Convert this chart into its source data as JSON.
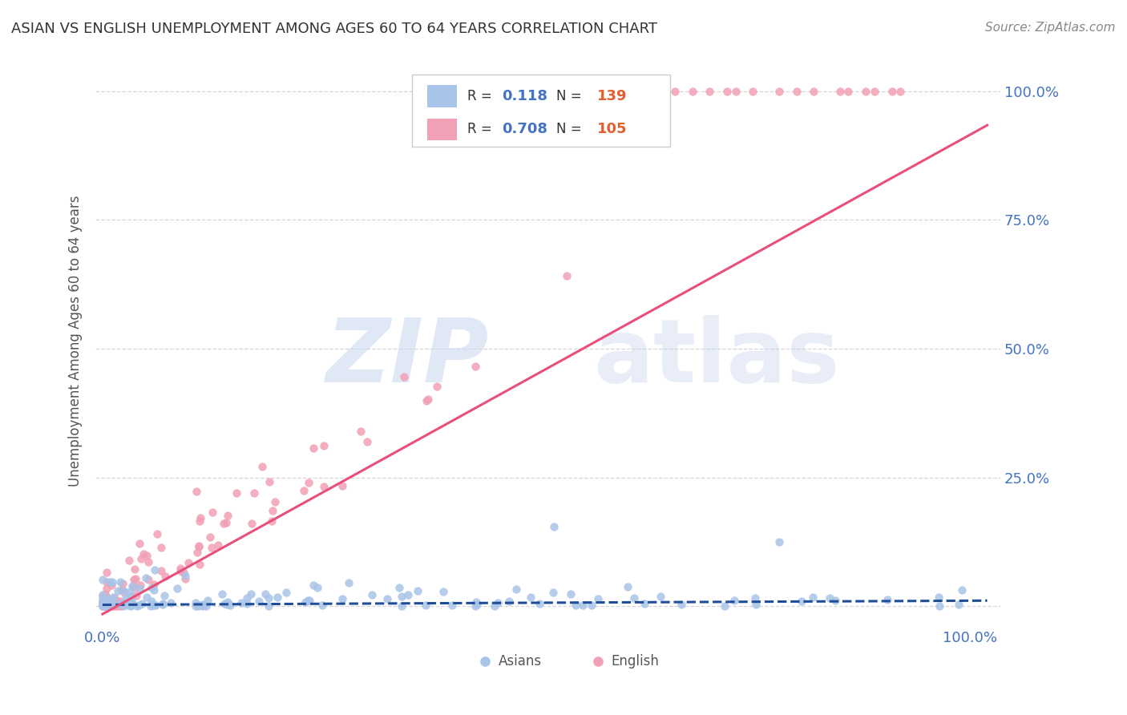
{
  "title": "ASIAN VS ENGLISH UNEMPLOYMENT AMONG AGES 60 TO 64 YEARS CORRELATION CHART",
  "source": "Source: ZipAtlas.com",
  "ylabel": "Unemployment Among Ages 60 to 64 years",
  "legend_r_asian": "0.118",
  "legend_n_asian": "139",
  "legend_r_english": "0.708",
  "legend_n_english": "105",
  "asian_color": "#a8c4e8",
  "english_color": "#f2a0b5",
  "asian_line_color": "#1f4e99",
  "english_line_color": "#e8507a",
  "title_color": "#333333",
  "source_color": "#888888",
  "tick_color": "#4472c4",
  "ylabel_color": "#555555",
  "legend_text_color": "#333333",
  "legend_r_color": "#4472c4",
  "legend_n_color": "#e06030",
  "watermark_zip_color": "#ccd9f0",
  "watermark_atlas_color": "#ccd9f0",
  "grid_color": "#cccccc",
  "legend_border_color": "#cccccc",
  "bottom_legend_text_color": "#555555"
}
